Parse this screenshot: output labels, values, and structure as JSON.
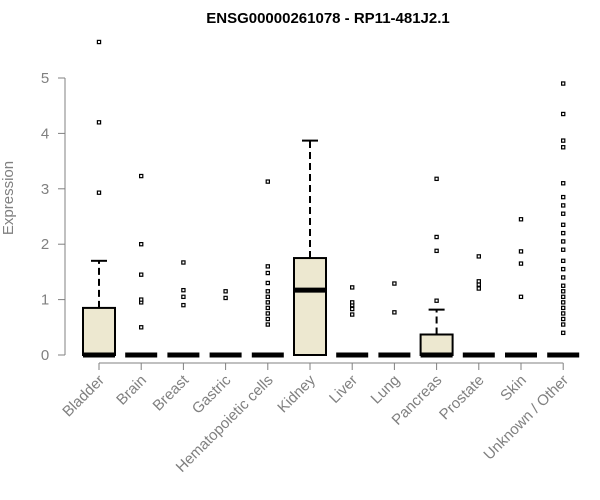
{
  "chart_data": {
    "type": "boxplot",
    "title": "ENSG00000261078 - RP11-481J2.1",
    "xlabel": "",
    "ylabel": "Expression",
    "ylim": [
      0,
      5.7
    ],
    "yticks": [
      0,
      1,
      2,
      3,
      4,
      5
    ],
    "grid": false,
    "box_fill": "#ede8d0",
    "box_stroke": "#000000",
    "categories": [
      "Bladder",
      "Brain",
      "Breast",
      "Gastric",
      "Hematopoietic cells",
      "Kidney",
      "Liver",
      "Lung",
      "Pancreas",
      "Prostate",
      "Skin",
      "Unknown / Other"
    ],
    "boxes": [
      {
        "min": 0,
        "q1": 0,
        "median": 0,
        "q3": 0.85,
        "max": 1.7,
        "outliers": [
          2.93,
          4.2,
          5.65
        ]
      },
      {
        "min": 0,
        "q1": 0,
        "median": 0,
        "q3": 0,
        "max": 0,
        "outliers": [
          0.5,
          0.95,
          1.0,
          1.45,
          2.0,
          3.23
        ]
      },
      {
        "min": 0,
        "q1": 0,
        "median": 0,
        "q3": 0,
        "max": 0,
        "outliers": [
          0.9,
          1.05,
          1.17,
          1.67
        ]
      },
      {
        "min": 0,
        "q1": 0,
        "median": 0,
        "q3": 0,
        "max": 0,
        "outliers": [
          1.03,
          1.15
        ]
      },
      {
        "min": 0,
        "q1": 0,
        "median": 0,
        "q3": 0,
        "max": 0,
        "outliers": [
          0.55,
          0.65,
          0.75,
          0.85,
          0.95,
          1.05,
          1.15,
          1.3,
          1.48,
          1.6,
          3.13
        ]
      },
      {
        "min": 0,
        "q1": 0,
        "median": 1.17,
        "q3": 1.75,
        "max": 3.87,
        "outliers": []
      },
      {
        "min": 0,
        "q1": 0,
        "median": 0,
        "q3": 0,
        "max": 0,
        "outliers": [
          0.73,
          0.83,
          0.9,
          0.95,
          1.22
        ]
      },
      {
        "min": 0,
        "q1": 0,
        "median": 0,
        "q3": 0,
        "max": 0,
        "outliers": [
          0.77,
          1.29
        ]
      },
      {
        "min": 0,
        "q1": 0,
        "median": 0,
        "q3": 0.37,
        "max": 0.82,
        "outliers": [
          0.98,
          1.88,
          2.13,
          3.18
        ]
      },
      {
        "min": 0,
        "q1": 0,
        "median": 0,
        "q3": 0,
        "max": 0,
        "outliers": [
          1.2,
          1.27,
          1.33,
          1.78
        ]
      },
      {
        "min": 0,
        "q1": 0,
        "median": 0,
        "q3": 0,
        "max": 0,
        "outliers": [
          1.05,
          1.65,
          1.87,
          2.45
        ]
      },
      {
        "min": 0,
        "q1": 0,
        "median": 0,
        "q3": 0,
        "max": 0,
        "outliers": [
          0.4,
          0.55,
          0.65,
          0.75,
          0.85,
          0.95,
          1.05,
          1.15,
          1.25,
          1.4,
          1.55,
          1.7,
          1.9,
          2.05,
          2.2,
          2.35,
          2.55,
          2.7,
          2.85,
          3.1,
          3.75,
          3.87,
          4.35,
          4.9
        ]
      }
    ]
  }
}
